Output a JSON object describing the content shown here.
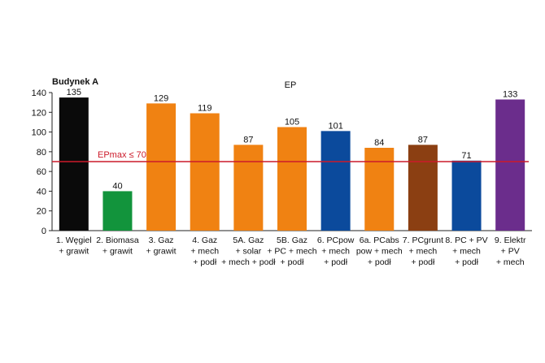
{
  "chart_data": {
    "type": "bar",
    "title": "Budynek A",
    "subtitle": "EP",
    "categories": [
      [
        "1. Węgiel",
        "+ grawit"
      ],
      [
        "2. Biomasa",
        "+ grawit"
      ],
      [
        "3. Gaz",
        "+ grawit"
      ],
      [
        "4. Gaz",
        "+ mech",
        "+ podł"
      ],
      [
        "5A. Gaz",
        "+ solar",
        "+ mech + podł"
      ],
      [
        "5B. Gaz",
        "+ PC + mech",
        "+ podł"
      ],
      [
        "6. PCpow",
        "+ mech",
        "+ podł"
      ],
      [
        "6a. PCabs",
        "pow + mech",
        "+ podł"
      ],
      [
        "7. PCgrunt",
        "+ mech",
        "+ podł"
      ],
      [
        "8. PC + PV",
        "+ mech",
        "+ podł"
      ],
      [
        "9. Elektr",
        "+ PV",
        "+ mech"
      ]
    ],
    "values": [
      135,
      40,
      129,
      119,
      87,
      105,
      101,
      84,
      87,
      71,
      133
    ],
    "value_labels": [
      "135",
      "40",
      "129",
      "119",
      "87",
      "105",
      "101",
      "84",
      "87",
      "71",
      "133"
    ],
    "colors": [
      "#0a0a0a",
      "#12943c",
      "#f08212",
      "#f08212",
      "#f08212",
      "#f08212",
      "#0b4a9c",
      "#f08212",
      "#8b3f12",
      "#0b4a9c",
      "#6b2d8c"
    ],
    "ylim": [
      0,
      140
    ],
    "yticks": [
      0,
      20,
      40,
      60,
      80,
      100,
      120,
      140
    ],
    "ytick_labels": [
      "0",
      "20",
      "40",
      "60",
      "80",
      "100",
      "120",
      "140"
    ],
    "threshold": {
      "value": 70,
      "label": "EPmax ≤ 70",
      "color": "#cc1a2a"
    },
    "grid": false,
    "legend": "none"
  }
}
